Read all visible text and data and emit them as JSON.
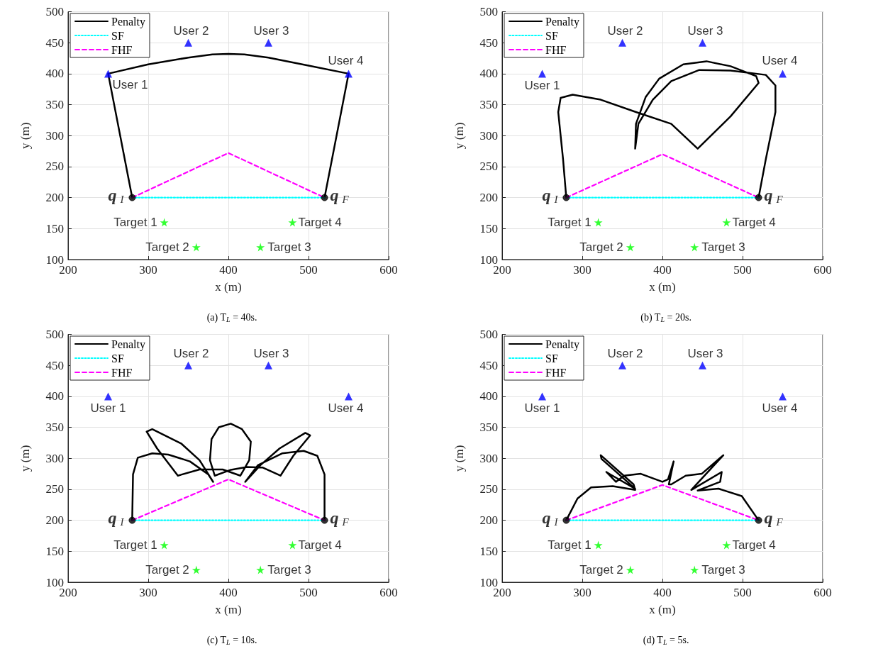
{
  "chart_data": [
    {
      "type": "line",
      "title": "(a) T$_{L}$ = 40s.",
      "xlabel": "x (m)",
      "ylabel": "y (m)",
      "xlim": [
        200,
        600
      ],
      "ylim": [
        100,
        500
      ],
      "xticks": [
        200,
        300,
        400,
        500,
        600
      ],
      "yticks": [
        100,
        150,
        200,
        250,
        300,
        350,
        400,
        450,
        500
      ],
      "grid": true,
      "legend": "top left",
      "series": [
        {
          "name": "Penalty",
          "color": "#000000",
          "marker": "none",
          "line_style": "solid",
          "x": [
            280,
            250,
            300,
            350,
            380,
            400,
            420,
            450,
            500,
            550,
            520
          ],
          "values": [
            200,
            400,
            415,
            426,
            431,
            432,
            431,
            426,
            413,
            400,
            200
          ]
        },
        {
          "name": "SF",
          "type": "line",
          "color": "#00ffff",
          "marker": "none",
          "line_style": "dotted",
          "x": [
            280,
            520
          ],
          "values": [
            200,
            200
          ]
        },
        {
          "name": "FHF",
          "type": "line",
          "color": "#ff00ff",
          "marker": "none",
          "line_style": "dashed",
          "x": [
            280,
            400,
            520
          ],
          "values": [
            200,
            272,
            200
          ]
        },
        {
          "type": "scatter",
          "color": "#0000ff",
          "marker": "triangle",
          "x": [
            250,
            350,
            450,
            550
          ],
          "values": [
            400,
            450,
            450,
            400
          ]
        },
        {
          "type": "scatter",
          "color": "#00ff00",
          "marker": "star",
          "x": [
            320,
            360,
            440,
            480
          ],
          "values": [
            160,
            120,
            120,
            160
          ]
        },
        {
          "type": "scatter",
          "color": "#000000",
          "marker": "circle",
          "x": [
            280,
            520
          ],
          "values": [
            200,
            200
          ]
        }
      ],
      "annotations": [
        {
          "text": "User 1",
          "x": 250,
          "y": 400
        },
        {
          "text": "User 2",
          "x": 350,
          "y": 450
        },
        {
          "text": "User 3",
          "x": 450,
          "y": 450
        },
        {
          "text": "User 4",
          "x": 550,
          "y": 400
        },
        {
          "text": "Target 1",
          "x": 320,
          "y": 160
        },
        {
          "text": "Target 2",
          "x": 360,
          "y": 120
        },
        {
          "text": "Target 3",
          "x": 440,
          "y": 120
        },
        {
          "text": "Target 4",
          "x": 480,
          "y": 160
        },
        {
          "text": "q$_{I}$",
          "x": 280,
          "y": 200
        },
        {
          "text": "q$_{F}$",
          "x": 520,
          "y": 200
        }
      ]
    },
    {
      "type": "line",
      "title": "(b) T$_{L}$ = 20s.",
      "xlabel": "x (m)",
      "ylabel": "y (m)",
      "xlim": [
        200,
        600
      ],
      "ylim": [
        100,
        500
      ],
      "xticks": [
        200,
        300,
        400,
        500,
        600
      ],
      "yticks": [
        100,
        150,
        200,
        250,
        300,
        350,
        400,
        450,
        500
      ],
      "grid": true,
      "legend": "top left",
      "series": [
        {
          "name": "Penalty",
          "color": "#000000",
          "marker": "none",
          "line_style": "solid",
          "x": [
            280,
            276,
            270,
            273,
            288,
            323,
            367,
            411,
            444,
            485,
            520,
            517,
            485,
            455,
            426,
            396,
            379,
            367,
            366,
            370,
            388,
            411,
            446,
            485,
            529,
            541,
            541,
            529,
            520
          ],
          "values": [
            200,
            262,
            338,
            361,
            366,
            358,
            338,
            319,
            279,
            331,
            385,
            396,
            412,
            420,
            415,
            392,
            362,
            319,
            279,
            319,
            358,
            388,
            406,
            405,
            398,
            381,
            338,
            262,
            200
          ]
        },
        {
          "name": "SF",
          "type": "line",
          "color": "#00ffff",
          "marker": "none",
          "line_style": "dotted",
          "x": [
            280,
            520
          ],
          "values": [
            200,
            200
          ]
        },
        {
          "name": "FHF",
          "type": "line",
          "color": "#ff00ff",
          "marker": "none",
          "line_style": "dashed",
          "x": [
            280,
            400,
            520
          ],
          "values": [
            200,
            270,
            200
          ]
        },
        {
          "type": "scatter",
          "color": "#0000ff",
          "marker": "triangle",
          "x": [
            250,
            350,
            450,
            550
          ],
          "values": [
            400,
            450,
            450,
            400
          ]
        },
        {
          "type": "scatter",
          "color": "#00ff00",
          "marker": "star",
          "x": [
            320,
            360,
            440,
            480
          ],
          "values": [
            160,
            120,
            120,
            160
          ]
        },
        {
          "type": "scatter",
          "color": "#000000",
          "marker": "circle",
          "x": [
            280,
            520
          ],
          "values": [
            200,
            200
          ]
        }
      ],
      "annotations": [
        {
          "text": "User 1",
          "x": 250,
          "y": 400
        },
        {
          "text": "User 2",
          "x": 350,
          "y": 450
        },
        {
          "text": "User 3",
          "x": 450,
          "y": 450
        },
        {
          "text": "User 4",
          "x": 550,
          "y": 400
        },
        {
          "text": "Target 1",
          "x": 320,
          "y": 160
        },
        {
          "text": "Target 2",
          "x": 360,
          "y": 120
        },
        {
          "text": "Target 3",
          "x": 440,
          "y": 120
        },
        {
          "text": "Target 4",
          "x": 480,
          "y": 160
        },
        {
          "text": "q$_{I}$",
          "x": 280,
          "y": 200
        },
        {
          "text": "q$_{F}$",
          "x": 520,
          "y": 200
        }
      ]
    },
    {
      "type": "line",
      "title": "(c) T$_{L}$ = 10s.",
      "xlabel": "x (m)",
      "ylabel": "y (m)",
      "xlim": [
        200,
        600
      ],
      "ylim": [
        100,
        500
      ],
      "xticks": [
        200,
        300,
        400,
        500,
        600
      ],
      "yticks": [
        100,
        150,
        200,
        250,
        300,
        350,
        400,
        450,
        500
      ],
      "grid": true,
      "legend": "top left",
      "series": [
        {
          "name": "Penalty",
          "color": "#000000",
          "marker": "none",
          "line_style": "solid",
          "x": [
            280,
            281,
            287,
            305,
            325,
            352,
            375,
            381,
            364,
            341,
            305,
            298,
            311,
            337,
            364,
            393,
            415,
            426,
            428,
            417,
            403,
            388,
            379,
            377,
            383,
            402,
            423,
            443,
            465,
            481,
            502,
            496,
            464,
            440,
            421,
            437,
            467,
            494,
            511,
            520,
            520
          ],
          "values": [
            200,
            274,
            301,
            308,
            306,
            295,
            274,
            262,
            297,
            324,
            347,
            343,
            316,
            272,
            282,
            282,
            272,
            297,
            327,
            347,
            356,
            350,
            331,
            297,
            272,
            281,
            286,
            285,
            272,
            304,
            337,
            341,
            316,
            289,
            262,
            289,
            308,
            312,
            304,
            274,
            200
          ]
        },
        {
          "name": "SF",
          "type": "line",
          "color": "#00ffff",
          "marker": "none",
          "line_style": "dotted",
          "x": [
            280,
            520
          ],
          "values": [
            200,
            200
          ]
        },
        {
          "name": "FHF",
          "type": "line",
          "color": "#ff00ff",
          "marker": "none",
          "line_style": "dashed",
          "x": [
            280,
            400,
            520
          ],
          "values": [
            200,
            266,
            200
          ]
        },
        {
          "type": "scatter",
          "color": "#0000ff",
          "marker": "triangle",
          "x": [
            250,
            350,
            450,
            550
          ],
          "values": [
            400,
            450,
            450,
            400
          ]
        },
        {
          "type": "scatter",
          "color": "#00ff00",
          "marker": "star",
          "x": [
            320,
            360,
            440,
            480
          ],
          "values": [
            160,
            120,
            120,
            160
          ]
        },
        {
          "type": "scatter",
          "color": "#000000",
          "marker": "circle",
          "x": [
            280,
            520
          ],
          "values": [
            200,
            200
          ]
        }
      ],
      "annotations": [
        {
          "text": "User 1",
          "x": 250,
          "y": 400
        },
        {
          "text": "User 2",
          "x": 350,
          "y": 450
        },
        {
          "text": "User 3",
          "x": 450,
          "y": 450
        },
        {
          "text": "User 4",
          "x": 550,
          "y": 400
        },
        {
          "text": "Target 1",
          "x": 320,
          "y": 160
        },
        {
          "text": "Target 2",
          "x": 360,
          "y": 120
        },
        {
          "text": "Target 3",
          "x": 440,
          "y": 120
        },
        {
          "text": "Target 4",
          "x": 480,
          "y": 160
        },
        {
          "text": "q$_{I}$",
          "x": 280,
          "y": 200
        },
        {
          "text": "q$_{F}$",
          "x": 520,
          "y": 200
        }
      ]
    },
    {
      "type": "line",
      "title": "(d) T$_{L}$ = 5s.",
      "xlabel": "x (m)",
      "ylabel": "y (m)",
      "xlim": [
        200,
        600
      ],
      "ylim": [
        100,
        500
      ],
      "xticks": [
        200,
        300,
        400,
        500,
        600
      ],
      "yticks": [
        100,
        150,
        200,
        250,
        300,
        350,
        400,
        450,
        500
      ],
      "grid": true,
      "legend": "top left",
      "series": [
        {
          "name": "Penalty",
          "color": "#000000",
          "marker": "none",
          "line_style": "solid",
          "x": [
            280,
            294,
            311,
            338,
            366,
            364,
            323,
            324,
            366,
            335,
            330,
            342,
            352,
            373,
            400,
            407,
            414,
            408,
            411,
            429,
            449,
            476,
            436,
            474,
            472,
            444,
            470,
            499,
            520
          ],
          "values": [
            200,
            235,
            253,
            255,
            249,
            258,
            305,
            299,
            251,
            274,
            278,
            262,
            272,
            275,
            262,
            266,
            295,
            258,
            258,
            272,
            275,
            305,
            249,
            278,
            262,
            248,
            251,
            239,
            200
          ]
        },
        {
          "name": "SF",
          "type": "line",
          "color": "#00ffff",
          "marker": "none",
          "line_style": "dotted",
          "x": [
            280,
            520
          ],
          "values": [
            200,
            200
          ]
        },
        {
          "name": "FHF",
          "type": "line",
          "color": "#ff00ff",
          "marker": "none",
          "line_style": "dashed",
          "x": [
            280,
            400,
            520
          ],
          "values": [
            200,
            257,
            200
          ]
        },
        {
          "type": "scatter",
          "color": "#0000ff",
          "marker": "triangle",
          "x": [
            250,
            350,
            450,
            550
          ],
          "values": [
            400,
            450,
            450,
            400
          ]
        },
        {
          "type": "scatter",
          "color": "#00ff00",
          "marker": "star",
          "x": [
            320,
            360,
            440,
            480
          ],
          "values": [
            160,
            120,
            120,
            160
          ]
        },
        {
          "type": "scatter",
          "color": "#000000",
          "marker": "circle",
          "x": [
            280,
            520
          ],
          "values": [
            200,
            200
          ]
        }
      ],
      "annotations": [
        {
          "text": "User 1",
          "x": 250,
          "y": 400
        },
        {
          "text": "User 2",
          "x": 350,
          "y": 450
        },
        {
          "text": "User 3",
          "x": 450,
          "y": 450
        },
        {
          "text": "User 4",
          "x": 550,
          "y": 400
        },
        {
          "text": "Target 1",
          "x": 320,
          "y": 160
        },
        {
          "text": "Target 2",
          "x": 360,
          "y": 120
        },
        {
          "text": "Target 3",
          "x": 440,
          "y": 120
        },
        {
          "text": "Target 4",
          "x": 480,
          "y": 160
        },
        {
          "text": "q$_{I}$",
          "x": 280,
          "y": 200
        },
        {
          "text": "q$_{F}$",
          "x": 520,
          "y": 200
        }
      ]
    }
  ]
}
